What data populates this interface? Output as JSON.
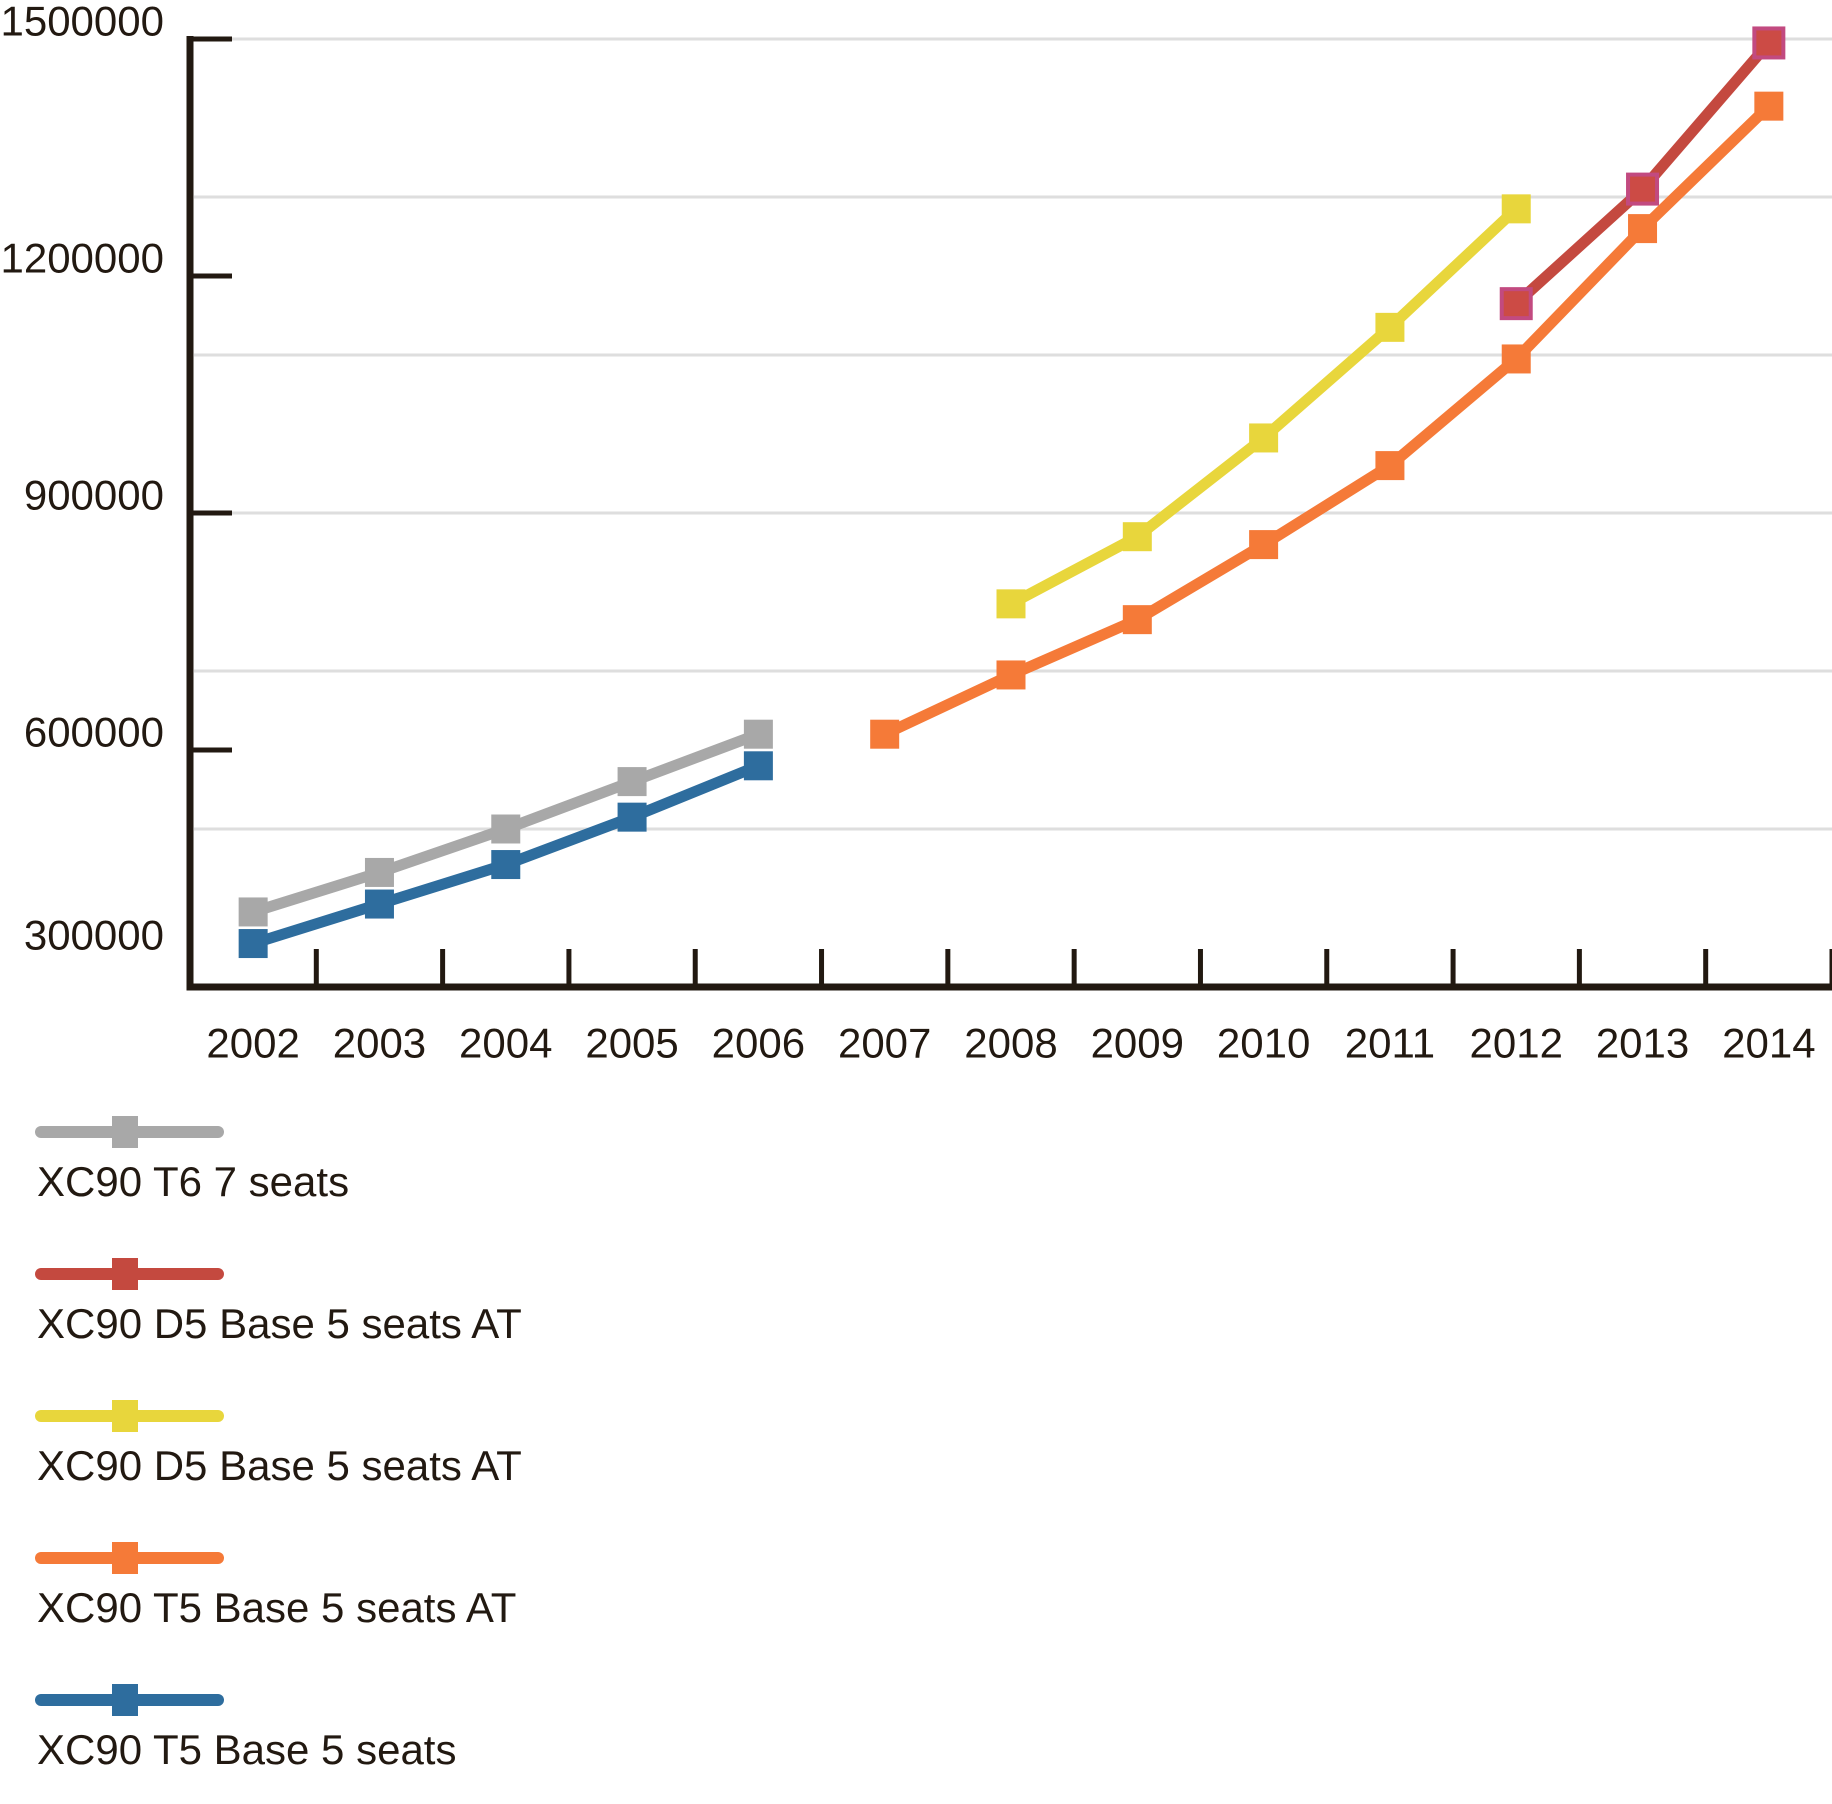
{
  "page": {
    "background_color": "#ffffff",
    "text_color": "#221911",
    "axis_color": "#221911",
    "gridline_color": "#dedede"
  },
  "chart_data": {
    "type": "line",
    "title": "",
    "xlabel": "",
    "ylabel": "",
    "grid": true,
    "legend_position": "bottom-left",
    "x_categories": [
      "2002",
      "2003",
      "2004",
      "2005",
      "2006",
      "2007",
      "2008",
      "2009",
      "2010",
      "2011",
      "2012",
      "2013",
      "2014"
    ],
    "y_axis": {
      "min": 300000,
      "max": 1500000,
      "gridline_values": [
        500000,
        700000,
        900000,
        1100000,
        1300000,
        1500000
      ],
      "ticks": [
        {
          "value": 1500000,
          "label": "1500000"
        },
        {
          "value": 1200000,
          "label": "1200000"
        },
        {
          "value": 900000,
          "label": "900000"
        },
        {
          "value": 600000,
          "label": "600000"
        },
        {
          "value": 300000,
          "label": "300000"
        }
      ]
    },
    "series": [
      {
        "name": "XC90 T6 7 seats",
        "color": "#a8a8a8",
        "marker": "square",
        "years": [
          "2002",
          "2003",
          "2004",
          "2005",
          "2006"
        ],
        "values": [
          395000,
          445000,
          500000,
          560000,
          620000
        ]
      },
      {
        "name": "XC90 D5 Base 5 seats AT",
        "color": "#c4493f",
        "marker_fill": "#cc4b45",
        "marker_stroke": "#c24a80",
        "marker": "square",
        "years": [
          "2012",
          "2013",
          "2014"
        ],
        "values": [
          1165000,
          1310000,
          1495000
        ]
      },
      {
        "name": "XC90 D5 Base 5 seats AT",
        "color": "#e8d63c",
        "marker": "square",
        "years": [
          "2008",
          "2009",
          "2010",
          "2011",
          "2012"
        ],
        "values": [
          785000,
          870000,
          995000,
          1135000,
          1285000
        ]
      },
      {
        "name": "XC90 T5 Base 5 seats AT",
        "color": "#f57a38",
        "marker": "square",
        "years": [
          "2007",
          "2008",
          "2009",
          "2010",
          "2011",
          "2012",
          "2013",
          "2014"
        ],
        "values": [
          620000,
          695000,
          765000,
          860000,
          960000,
          1095000,
          1260000,
          1415000
        ]
      },
      {
        "name": "XC90 T5 Base 5 seats",
        "color": "#2e6d9e",
        "marker": "square",
        "years": [
          "2002",
          "2003",
          "2004",
          "2005",
          "2006"
        ],
        "values": [
          355000,
          405000,
          455000,
          515000,
          580000
        ]
      }
    ]
  },
  "legend": {
    "entries": [
      {
        "label": "XC90 T6 7 seats",
        "color": "#a8a8a8"
      },
      {
        "label": "XC90 D5 Base 5 seats AT",
        "color": "#c4493f"
      },
      {
        "label": "XC90 D5 Base 5 seats AT",
        "color": "#e8d63c"
      },
      {
        "label": "XC90 T5 Base 5 seats AT",
        "color": "#f57a38"
      },
      {
        "label": "XC90 T5 Base 5 seats",
        "color": "#2e6d9e"
      }
    ]
  }
}
